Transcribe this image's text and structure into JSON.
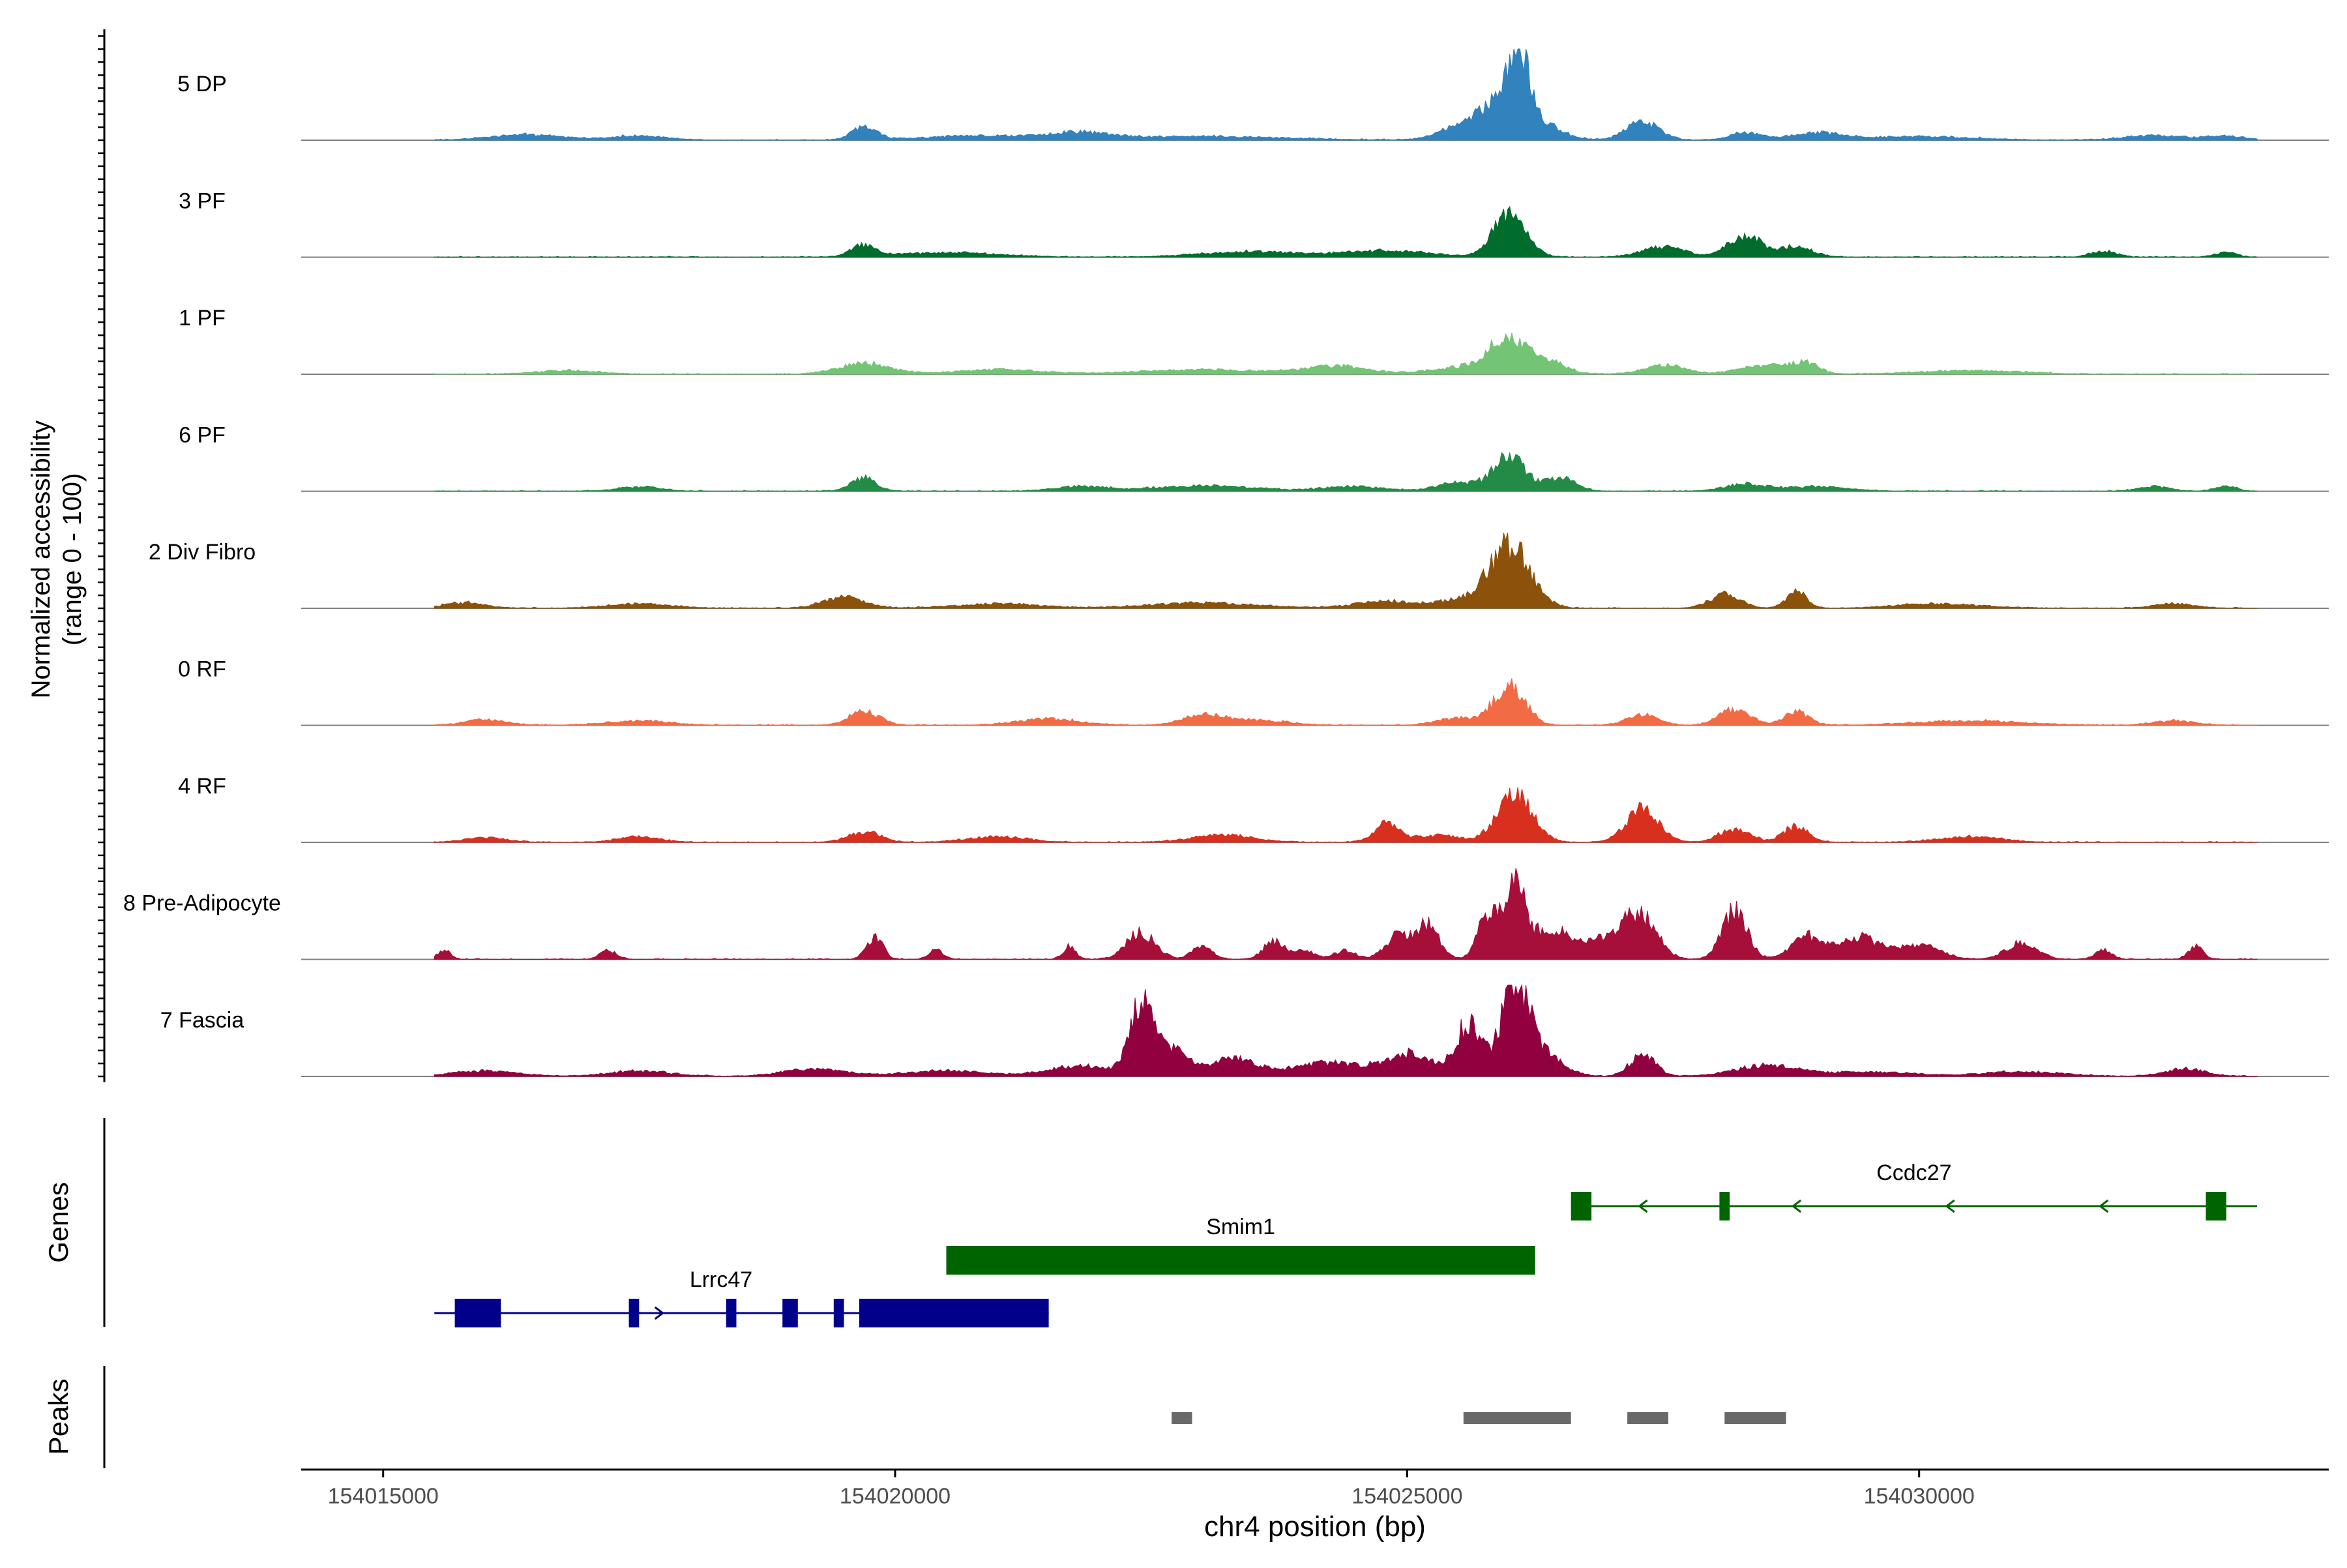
{
  "chart_data": {
    "type": "area",
    "title": "",
    "xlabel": "chr4 position (bp)",
    "ylabel": "Normalized accessibility",
    "ylabel_sub": "(range 0 - 100)",
    "xlim": [
      154014200,
      154034000
    ],
    "x_ticks": [
      154015000,
      154020000,
      154025000,
      154030000
    ],
    "x_tick_labels": [
      "154015000",
      "154020000",
      "154025000",
      "154030000"
    ],
    "track_start": 154015500,
    "track_end": 154033300,
    "tracks": [
      {
        "name": "5 DP",
        "color": "#3182bd",
        "peaks": [
          [
            154016400,
            6,
            350
          ],
          [
            154017500,
            5,
            250
          ],
          [
            154019700,
            15,
            120
          ],
          [
            154020800,
            5,
            500
          ],
          [
            154021800,
            7,
            300
          ],
          [
            154023000,
            4,
            800
          ],
          [
            154025500,
            15,
            200
          ],
          [
            154025800,
            32,
            130
          ],
          [
            154026070,
            100,
            110
          ],
          [
            154026300,
            18,
            200
          ],
          [
            154027300,
            20,
            160
          ],
          [
            154028300,
            8,
            150
          ],
          [
            154029000,
            8,
            250
          ],
          [
            154030000,
            4,
            500
          ],
          [
            154032300,
            5,
            300
          ],
          [
            154033000,
            4,
            200
          ]
        ]
      },
      {
        "name": "3 PF",
        "color": "#006d2c",
        "peaks": [
          [
            154019700,
            12,
            120
          ],
          [
            154020500,
            5,
            500
          ],
          [
            154023500,
            6,
            500
          ],
          [
            154024800,
            7,
            400
          ],
          [
            154026000,
            48,
            160
          ],
          [
            154027500,
            12,
            200
          ],
          [
            154028300,
            25,
            160
          ],
          [
            154028800,
            12,
            150
          ],
          [
            154031800,
            7,
            120
          ],
          [
            154033000,
            5,
            100
          ]
        ]
      },
      {
        "name": "1 PF",
        "color": "#74c476",
        "peaks": [
          [
            154016800,
            4,
            300
          ],
          [
            154019700,
            12,
            250
          ],
          [
            154021000,
            5,
            400
          ],
          [
            154023000,
            5,
            600
          ],
          [
            154024300,
            9,
            300
          ],
          [
            154025500,
            7,
            300
          ],
          [
            154025950,
            35,
            180
          ],
          [
            154026300,
            18,
            200
          ],
          [
            154027500,
            10,
            200
          ],
          [
            154028500,
            10,
            250
          ],
          [
            154028900,
            12,
            120
          ],
          [
            154030500,
            4,
            500
          ]
        ]
      },
      {
        "name": "6 PF",
        "color": "#238b45",
        "peaks": [
          [
            154017500,
            5,
            200
          ],
          [
            154019700,
            15,
            120
          ],
          [
            154021800,
            5,
            250
          ],
          [
            154023000,
            6,
            500
          ],
          [
            154024500,
            5,
            300
          ],
          [
            154025500,
            10,
            200
          ],
          [
            154026000,
            40,
            150
          ],
          [
            154026500,
            15,
            150
          ],
          [
            154028300,
            8,
            200
          ],
          [
            154029000,
            5,
            300
          ],
          [
            154032300,
            5,
            150
          ],
          [
            154033000,
            6,
            100
          ]
        ]
      },
      {
        "name": "2 Div Fibro",
        "color": "#8c510a",
        "peaks": [
          [
            154015800,
            6,
            200
          ],
          [
            154017500,
            5,
            300
          ],
          [
            154019500,
            12,
            200
          ],
          [
            154021000,
            5,
            400
          ],
          [
            154023000,
            6,
            500
          ],
          [
            154024800,
            8,
            300
          ],
          [
            154025500,
            8,
            200
          ],
          [
            154026000,
            70,
            200
          ],
          [
            154028100,
            15,
            150
          ],
          [
            154028800,
            18,
            100
          ],
          [
            154030200,
            5,
            400
          ],
          [
            154032500,
            5,
            200
          ]
        ]
      },
      {
        "name": "0 RF",
        "color": "#f16b45",
        "peaks": [
          [
            154016000,
            6,
            200
          ],
          [
            154017500,
            5,
            300
          ],
          [
            154019700,
            15,
            150
          ],
          [
            154021500,
            7,
            300
          ],
          [
            154023000,
            10,
            200
          ],
          [
            154023500,
            6,
            300
          ],
          [
            154025500,
            8,
            200
          ],
          [
            154026000,
            45,
            150
          ],
          [
            154027300,
            12,
            150
          ],
          [
            154028200,
            18,
            150
          ],
          [
            154028800,
            15,
            120
          ],
          [
            154030500,
            5,
            500
          ],
          [
            154032500,
            5,
            200
          ]
        ]
      },
      {
        "name": "4 RF",
        "color": "#d7301f",
        "peaks": [
          [
            154016000,
            5,
            200
          ],
          [
            154017500,
            6,
            200
          ],
          [
            154019700,
            12,
            150
          ],
          [
            154021000,
            6,
            300
          ],
          [
            154023200,
            8,
            300
          ],
          [
            154024800,
            22,
            120
          ],
          [
            154025300,
            8,
            200
          ],
          [
            154026050,
            55,
            170
          ],
          [
            154027300,
            37,
            160
          ],
          [
            154028200,
            15,
            150
          ],
          [
            154028800,
            18,
            120
          ],
          [
            154030500,
            6,
            300
          ]
        ]
      },
      {
        "name": "8 Pre-Adipocyte",
        "color": "#a50f3a",
        "peaks": [
          [
            154015600,
            10,
            60
          ],
          [
            154017200,
            10,
            80
          ],
          [
            154019800,
            25,
            80
          ],
          [
            154020400,
            10,
            70
          ],
          [
            154021700,
            15,
            60
          ],
          [
            154022400,
            30,
            140
          ],
          [
            154023000,
            15,
            100
          ],
          [
            154023700,
            20,
            100
          ],
          [
            154024000,
            10,
            100
          ],
          [
            154024400,
            10,
            100
          ],
          [
            154024900,
            25,
            120
          ],
          [
            154025200,
            40,
            110
          ],
          [
            154025800,
            55,
            100
          ],
          [
            154026050,
            90,
            90
          ],
          [
            154026400,
            35,
            200
          ],
          [
            154027000,
            25,
            200
          ],
          [
            154027300,
            45,
            150
          ],
          [
            154028200,
            55,
            120
          ],
          [
            154028900,
            25,
            150
          ],
          [
            154029400,
            25,
            200
          ],
          [
            154030000,
            15,
            200
          ],
          [
            154031000,
            18,
            150
          ],
          [
            154031800,
            10,
            80
          ],
          [
            154032700,
            15,
            70
          ]
        ]
      },
      {
        "name": "7 Fascia",
        "color": "#91003f",
        "peaks": [
          [
            154016000,
            6,
            300
          ],
          [
            154017500,
            6,
            300
          ],
          [
            154019200,
            8,
            300
          ],
          [
            154020500,
            6,
            400
          ],
          [
            154021800,
            12,
            300
          ],
          [
            154022400,
            80,
            110
          ],
          [
            154022700,
            30,
            150
          ],
          [
            154023300,
            20,
            250
          ],
          [
            154024200,
            15,
            300
          ],
          [
            154025000,
            25,
            250
          ],
          [
            154025600,
            58,
            120
          ],
          [
            154026050,
            100,
            130
          ],
          [
            154026300,
            25,
            200
          ],
          [
            154027300,
            25,
            120
          ],
          [
            154028500,
            12,
            300
          ],
          [
            154029500,
            5,
            400
          ],
          [
            154031000,
            5,
            400
          ],
          [
            154032600,
            8,
            200
          ]
        ]
      }
    ],
    "gene_track_label": "Genes",
    "genes": [
      {
        "name": "Ccdc27",
        "strand": "-",
        "color": "#006400",
        "start": 154026600,
        "end": 154033300,
        "exons": [
          [
            154026600,
            154026800
          ],
          [
            154028050,
            154028150
          ],
          [
            154032800,
            154033000
          ]
        ]
      },
      {
        "name": "Smim1",
        "strand": "+",
        "color": "#006400",
        "start": 154020500,
        "end": 154026250,
        "exons": [
          [
            154020500,
            154026250
          ]
        ]
      },
      {
        "name": "Lrrc47",
        "strand": "+",
        "color": "#00008b",
        "start": 154015500,
        "end": 154021500,
        "exons": [
          [
            154015700,
            154016150
          ],
          [
            154017400,
            154017500
          ],
          [
            154018350,
            154018450
          ],
          [
            154018900,
            154019050
          ],
          [
            154019400,
            154019500
          ],
          [
            154019650,
            154021500
          ]
        ]
      }
    ],
    "peak_track_label": "Peaks",
    "peak_regions": [
      [
        154022700,
        154022900
      ],
      [
        154025550,
        154026600
      ],
      [
        154027150,
        154027550
      ],
      [
        154028100,
        154028700
      ]
    ],
    "peak_color": "#696969"
  }
}
